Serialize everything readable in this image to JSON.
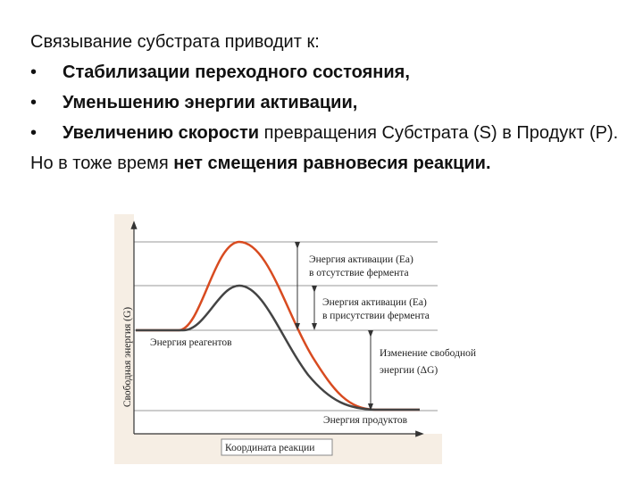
{
  "text": {
    "intro": "Связывание субстрата приводит к:",
    "bullets": [
      {
        "bold": "Стабилизации переходного  состояния,"
      },
      {
        "bold": "Уменьшению энергии активации,"
      },
      {
        "bold": "Увеличению скорости",
        "normal": "превращения Субстрата (S) в Продукт (P)."
      }
    ],
    "final": {
      "normal": "Но в тоже время",
      "bold": "нет смещения равновесия реакции."
    }
  },
  "diagram": {
    "y_axis_label": "Свободная энергия (G)",
    "x_axis_label": "Координата реакции",
    "ea_without": [
      "Энергия активации (Ea)",
      "в отсутствие фермента"
    ],
    "ea_with": [
      "Энергия активации (Ea)",
      "в присутствии фермента"
    ],
    "reactants": "Энергия реагентов",
    "delta_g": [
      "Изменение свободной",
      "энергии (ΔG)"
    ],
    "products": "Энергия продуктов"
  }
}
